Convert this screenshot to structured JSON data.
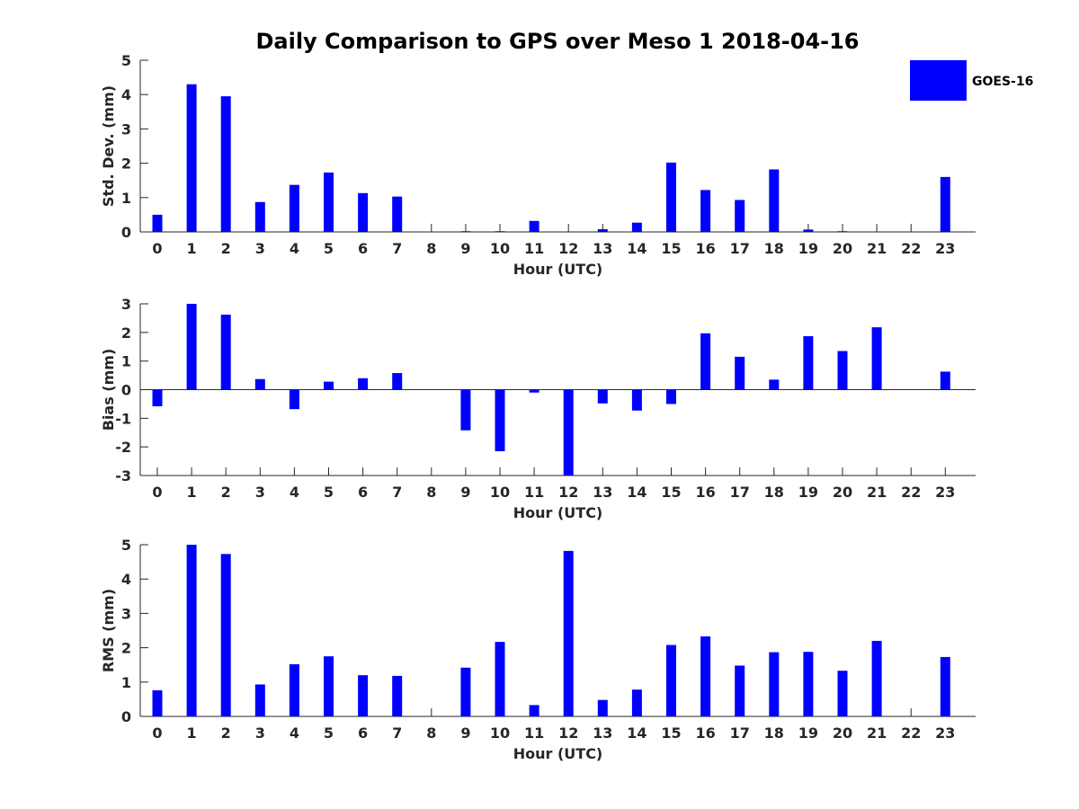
{
  "chart_data": {
    "type": "bar",
    "title": "Daily Comparison to GPS over Meso 1 2018-04-16",
    "legend": {
      "entries": [
        "GOES-16"
      ],
      "placement": "top-right",
      "color": "#0000ff"
    },
    "bar_color": "#0000ff",
    "categories": [
      "0",
      "1",
      "2",
      "3",
      "4",
      "5",
      "6",
      "7",
      "8",
      "9",
      "10",
      "11",
      "12",
      "13",
      "14",
      "15",
      "16",
      "17",
      "18",
      "19",
      "20",
      "21",
      "22",
      "23"
    ],
    "panels": [
      {
        "id": "std",
        "ylabel": "Std. Dev. (mm)",
        "xlabel": "Hour (UTC)",
        "ylim": [
          0,
          5
        ],
        "yticks": [
          "0",
          "1",
          "2",
          "3",
          "4",
          "5"
        ],
        "series": [
          {
            "name": "GOES-16",
            "values": [
              0.5,
              4.3,
              3.95,
              0.87,
              1.37,
              1.73,
              1.13,
              1.03,
              0,
              0.02,
              0.02,
              0.32,
              0,
              0.08,
              0.27,
              2.02,
              1.22,
              0.93,
              1.82,
              0.07,
              0.02,
              0,
              0,
              1.6
            ]
          }
        ]
      },
      {
        "id": "bias",
        "ylabel": "Bias (mm)",
        "xlabel": "Hour (UTC)",
        "ylim": [
          -3,
          3
        ],
        "yticks": [
          "-3",
          "-2",
          "-1",
          "0",
          "1",
          "2",
          "3"
        ],
        "series": [
          {
            "name": "GOES-16",
            "values": [
              -0.58,
              3.0,
              2.62,
              0.37,
              -0.68,
              0.28,
              0.4,
              0.58,
              0,
              -1.42,
              -2.15,
              -0.1,
              -3.0,
              -0.48,
              -0.73,
              -0.5,
              1.97,
              1.15,
              0.35,
              1.87,
              1.35,
              2.18,
              0,
              0.63
            ]
          }
        ]
      },
      {
        "id": "rms",
        "ylabel": "RMS (mm)",
        "xlabel": "Hour (UTC)",
        "ylim": [
          0,
          5
        ],
        "yticks": [
          "0",
          "1",
          "2",
          "3",
          "4",
          "5"
        ],
        "series": [
          {
            "name": "GOES-16",
            "values": [
              0.76,
              5.0,
              4.73,
              0.93,
              1.52,
              1.75,
              1.2,
              1.18,
              0,
              1.42,
              2.17,
              0.33,
              4.82,
              0.48,
              0.78,
              2.08,
              2.33,
              1.48,
              1.87,
              1.88,
              1.33,
              2.2,
              0,
              1.73
            ]
          }
        ]
      }
    ]
  }
}
